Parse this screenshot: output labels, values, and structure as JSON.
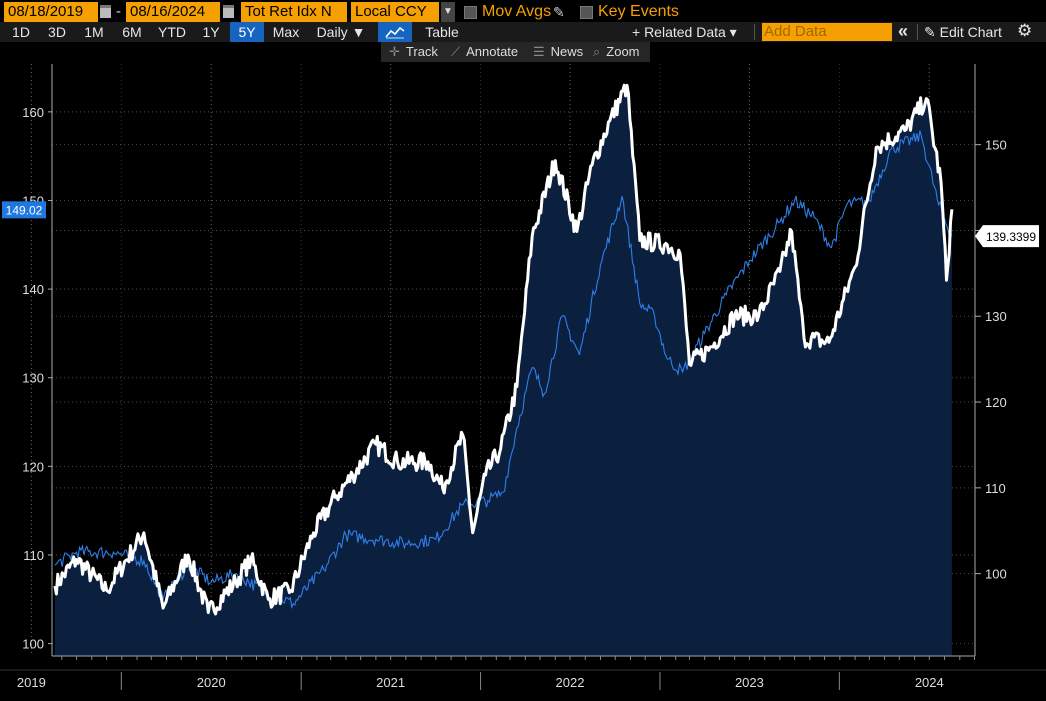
{
  "header": {
    "start_date": "08/18/2019",
    "date_sep": "-",
    "end_date": "08/16/2024",
    "field": "Tot Ret Idx N",
    "currency": "Local CCY",
    "mov_avgs": "Mov Avgs",
    "key_events": "Key Events"
  },
  "toolbar": {
    "ranges": [
      "1D",
      "3D",
      "1M",
      "6M",
      "YTD",
      "1Y",
      "5Y",
      "Max"
    ],
    "active_range": "5Y",
    "frequency": "Daily ▼",
    "table": "Table",
    "related": "+ Related Data ▾",
    "add_data_placeholder": "Add Data",
    "collapse": "«",
    "edit_chart": "Edit Chart"
  },
  "tools": {
    "track": "Track",
    "annotate": "Annotate",
    "news": "News",
    "zoom": "Zoom"
  },
  "colors": {
    "accent": "#f5a000",
    "active_tab": "#1565c0",
    "series_white": "#ffffff",
    "series_blue": "#2f7fe8",
    "area_fill": "#0b1f3f"
  },
  "chart_data": {
    "type": "line",
    "x_ticks": [
      "2019",
      "2020",
      "2021",
      "2022",
      "2023",
      "2024"
    ],
    "left_axis": {
      "ticks": [
        100,
        110,
        120,
        130,
        140,
        150,
        160
      ],
      "range": [
        98.6,
        165.4
      ]
    },
    "right_axis": {
      "ticks": [
        100,
        110,
        120,
        130,
        140,
        150
      ],
      "range": [
        90.4,
        159.4
      ]
    },
    "grid": true,
    "series": [
      {
        "axis": "left",
        "color": "white",
        "last_value": "149.02",
        "points": [
          [
            "2019-08-18",
            106.5
          ],
          [
            "2019-10-01",
            109.5
          ],
          [
            "2019-12-01",
            106.0
          ],
          [
            "2020-02-15",
            112.5
          ],
          [
            "2020-03-25",
            104.0
          ],
          [
            "2020-05-15",
            110.0
          ],
          [
            "2020-06-25",
            103.5
          ],
          [
            "2020-08-20",
            107.0
          ],
          [
            "2020-09-20",
            109.5
          ],
          [
            "2020-10-25",
            105.0
          ],
          [
            "2020-12-10",
            106.0
          ],
          [
            "2021-01-25",
            112.5
          ],
          [
            "2021-03-10",
            116.5
          ],
          [
            "2021-04-15",
            119.0
          ],
          [
            "2021-06-01",
            122.5
          ],
          [
            "2021-07-15",
            120.5
          ],
          [
            "2021-09-15",
            120.5
          ],
          [
            "2021-10-15",
            117.5
          ],
          [
            "2021-11-25",
            123.5
          ],
          [
            "2021-12-15",
            112.5
          ],
          [
            "2022-01-10",
            119.0
          ],
          [
            "2022-02-10",
            122.0
          ],
          [
            "2022-03-15",
            129.0
          ],
          [
            "2022-04-15",
            146.0
          ],
          [
            "2022-06-01",
            154.5
          ],
          [
            "2022-07-15",
            146.5
          ],
          [
            "2022-08-15",
            154.0
          ],
          [
            "2022-09-20",
            159.0
          ],
          [
            "2022-10-25",
            163.0
          ],
          [
            "2022-11-20",
            145.5
          ],
          [
            "2023-01-15",
            145.0
          ],
          [
            "2023-02-10",
            144.0
          ],
          [
            "2023-03-01",
            131.5
          ],
          [
            "2023-04-15",
            133.5
          ],
          [
            "2023-06-01",
            137.0
          ],
          [
            "2023-07-20",
            137.0
          ],
          [
            "2023-09-01",
            142.0
          ],
          [
            "2023-09-25",
            146.5
          ],
          [
            "2023-10-20",
            134.5
          ],
          [
            "2023-12-10",
            134.0
          ],
          [
            "2024-02-01",
            142.5
          ],
          [
            "2024-03-15",
            156.0
          ],
          [
            "2024-05-15",
            158.0
          ],
          [
            "2024-06-25",
            161.5
          ],
          [
            "2024-07-25",
            152.0
          ],
          [
            "2024-08-05",
            141.0
          ],
          [
            "2024-08-16",
            149.0
          ]
        ]
      },
      {
        "axis": "right",
        "color": "blue",
        "last_value": "139.3399",
        "points": [
          [
            "2019-08-18",
            101.0
          ],
          [
            "2019-10-01",
            102.5
          ],
          [
            "2019-12-15",
            102.5
          ],
          [
            "2020-02-15",
            101.5
          ],
          [
            "2020-03-25",
            97.0
          ],
          [
            "2020-05-15",
            101.0
          ],
          [
            "2020-07-01",
            99.0
          ],
          [
            "2020-08-20",
            100.0
          ],
          [
            "2020-10-15",
            98.0
          ],
          [
            "2020-12-15",
            96.5
          ],
          [
            "2021-02-15",
            100.5
          ],
          [
            "2021-04-01",
            104.5
          ],
          [
            "2021-06-01",
            104.0
          ],
          [
            "2021-08-01",
            103.5
          ],
          [
            "2021-10-01",
            104.0
          ],
          [
            "2021-11-25",
            108.0
          ],
          [
            "2022-01-15",
            108.5
          ],
          [
            "2022-02-15",
            109.5
          ],
          [
            "2022-03-15",
            117.0
          ],
          [
            "2022-04-15",
            124.0
          ],
          [
            "2022-05-10",
            121.0
          ],
          [
            "2022-06-15",
            130.0
          ],
          [
            "2022-07-20",
            125.5
          ],
          [
            "2022-09-01",
            136.0
          ],
          [
            "2022-10-15",
            144.0
          ],
          [
            "2022-11-20",
            131.5
          ],
          [
            "2022-12-20",
            130.0
          ],
          [
            "2023-01-15",
            125.0
          ],
          [
            "2023-02-15",
            123.5
          ],
          [
            "2023-04-01",
            128.0
          ],
          [
            "2023-05-15",
            132.5
          ],
          [
            "2023-07-01",
            136.5
          ],
          [
            "2023-09-01",
            141.0
          ],
          [
            "2023-10-01",
            143.5
          ],
          [
            "2023-11-10",
            141.5
          ],
          [
            "2023-12-15",
            138.0
          ],
          [
            "2024-01-15",
            143.0
          ],
          [
            "2024-03-01",
            143.5
          ],
          [
            "2024-04-15",
            149.5
          ],
          [
            "2024-06-15",
            151.0
          ],
          [
            "2024-07-20",
            143.0
          ],
          [
            "2024-08-16",
            139.34
          ]
        ]
      }
    ]
  }
}
